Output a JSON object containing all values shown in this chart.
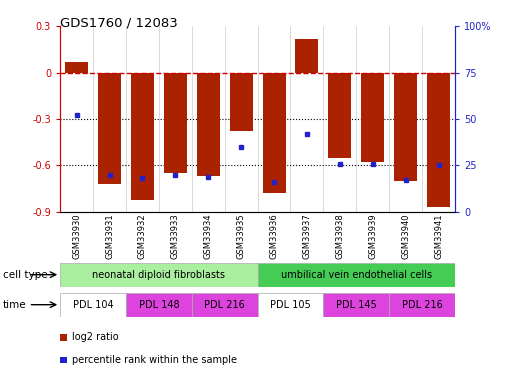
{
  "title": "GDS1760 / 12083",
  "samples": [
    "GSM33930",
    "GSM33931",
    "GSM33932",
    "GSM33933",
    "GSM33934",
    "GSM33935",
    "GSM33936",
    "GSM33937",
    "GSM33938",
    "GSM33939",
    "GSM33940",
    "GSM33941"
  ],
  "log2_ratio": [
    0.07,
    -0.72,
    -0.82,
    -0.65,
    -0.67,
    -0.38,
    -0.78,
    0.22,
    -0.55,
    -0.58,
    -0.7,
    -0.87
  ],
  "percentile_rank": [
    52,
    20,
    18,
    20,
    19,
    35,
    16,
    42,
    26,
    26,
    17,
    25
  ],
  "bar_color": "#aa2200",
  "dot_color": "#2222cc",
  "ylim_left": [
    -0.9,
    0.3
  ],
  "ylim_right": [
    0,
    100
  ],
  "right_ticks": [
    0,
    25,
    50,
    75,
    100
  ],
  "right_tick_labels": [
    "0",
    "25",
    "50",
    "75",
    "100%"
  ],
  "left_ticks": [
    -0.9,
    -0.6,
    -0.3,
    0.0,
    0.3
  ],
  "left_tick_labels": [
    "-0.9",
    "-0.6",
    "-0.3",
    "0",
    "0.3"
  ],
  "dotted_lines": [
    -0.3,
    -0.6
  ],
  "cell_type_groups": [
    {
      "label": "neonatal diploid fibroblasts",
      "start": 0,
      "end": 6,
      "color": "#aaeea0"
    },
    {
      "label": "umbilical vein endothelial cells",
      "start": 6,
      "end": 12,
      "color": "#44cc55"
    }
  ],
  "time_groups": [
    {
      "label": "PDL 104",
      "start": 0,
      "end": 2,
      "color": "#ffffff"
    },
    {
      "label": "PDL 148",
      "start": 2,
      "end": 4,
      "color": "#dd44dd"
    },
    {
      "label": "PDL 216",
      "start": 4,
      "end": 6,
      "color": "#dd44dd"
    },
    {
      "label": "PDL 105",
      "start": 6,
      "end": 8,
      "color": "#ffffff"
    },
    {
      "label": "PDL 145",
      "start": 8,
      "end": 10,
      "color": "#dd44dd"
    },
    {
      "label": "PDL 216",
      "start": 10,
      "end": 12,
      "color": "#dd44dd"
    }
  ],
  "cell_type_label": "cell type",
  "time_label": "time",
  "legend_items": [
    {
      "color": "#aa2200",
      "label": "log2 ratio"
    },
    {
      "color": "#2222cc",
      "label": "percentile rank within the sample"
    }
  ],
  "bar_width": 0.7,
  "background_color": "#ffffff"
}
